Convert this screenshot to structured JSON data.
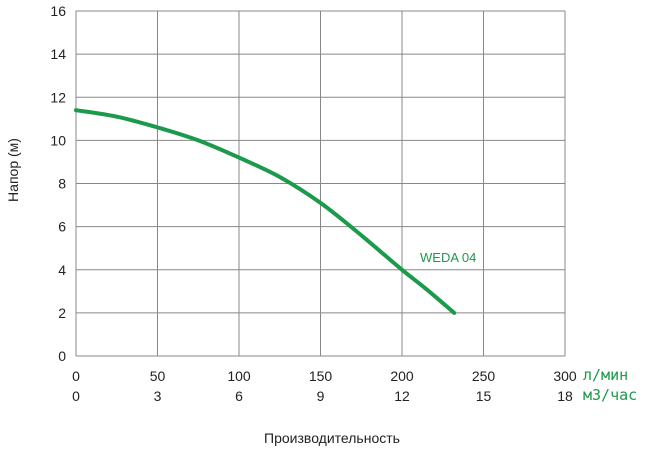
{
  "chart_data": {
    "type": "line",
    "ylabel": "Напор (м)",
    "xlabel": "Производительность",
    "ylim": [
      0,
      16
    ],
    "yticks": [
      "0",
      "2",
      "4",
      "6",
      "8",
      "10",
      "12",
      "14",
      "16"
    ],
    "xlim": [
      0,
      300
    ],
    "xticks_lmin": [
      "0",
      "50",
      "100",
      "150",
      "200",
      "250",
      "300"
    ],
    "xticks_m3h": [
      "0",
      "3",
      "6",
      "9",
      "12",
      "15",
      "18"
    ],
    "unit_lmin": "л/мин",
    "unit_m3h": "м3/час",
    "grid": true,
    "series": [
      {
        "name": "WEDA 04",
        "color": "#1a9a4a",
        "x": [
          0,
          25,
          50,
          75,
          100,
          125,
          150,
          175,
          200,
          215,
          232
        ],
        "y": [
          11.4,
          11.1,
          10.6,
          10.0,
          9.2,
          8.3,
          7.1,
          5.6,
          4.0,
          3.1,
          2.0
        ]
      }
    ]
  }
}
